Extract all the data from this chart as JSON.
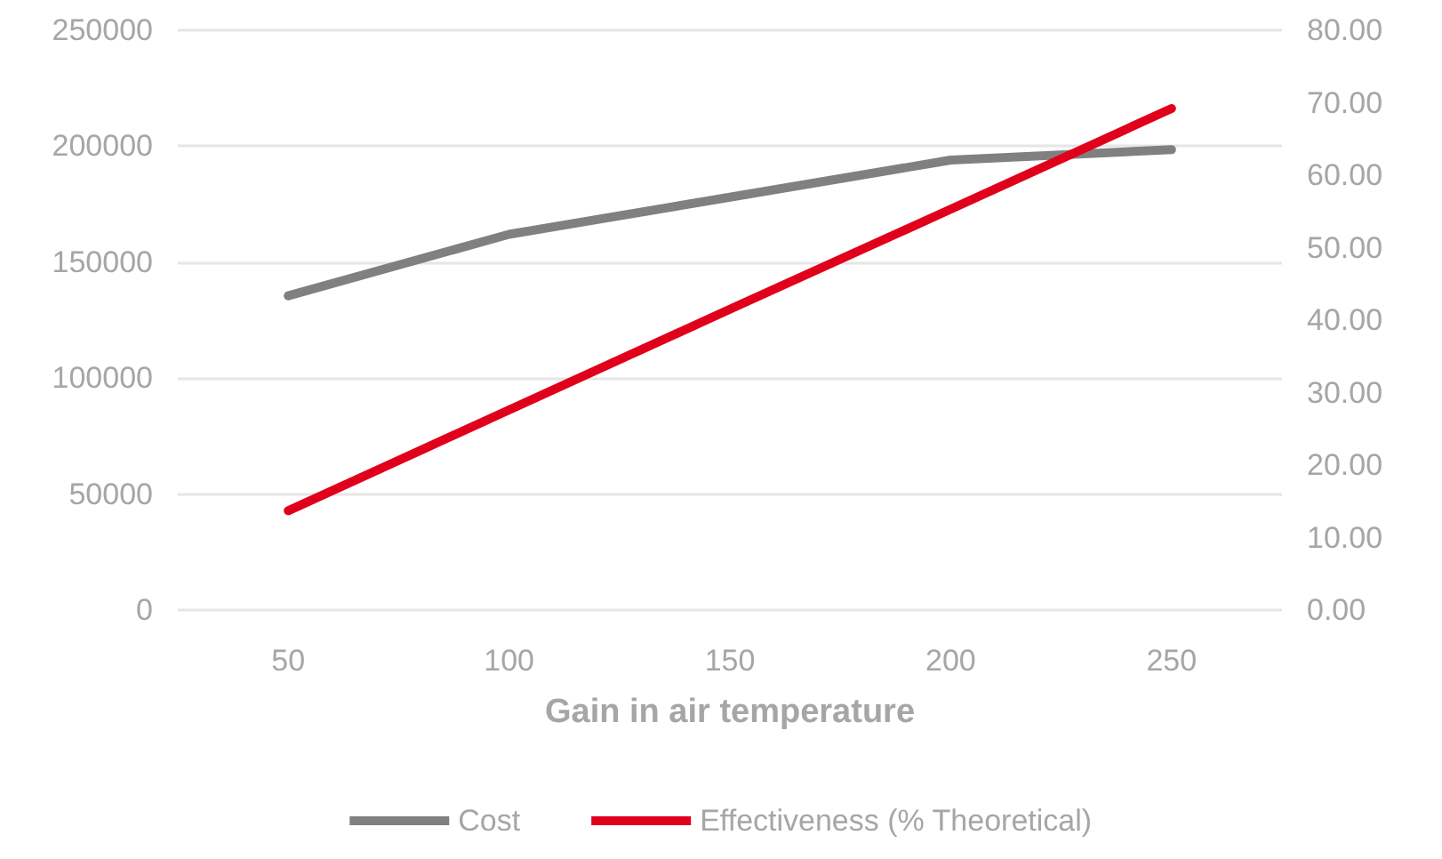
{
  "chart_data": {
    "type": "line",
    "xlabel": "Gain in air temperature",
    "categories": [
      "50",
      "100",
      "150",
      "200",
      "250"
    ],
    "series": [
      {
        "name": "Cost",
        "color": "#808080",
        "values": [
          135500,
          162000,
          178000,
          194000,
          198500
        ]
      },
      {
        "name": "Effectiveness (% Theoretical)",
        "color": "#e0001b",
        "axis": "y2",
        "values": [
          13.7,
          27.6,
          41.5,
          55.3,
          69.2
        ]
      }
    ],
    "ylim": [
      0,
      250000
    ],
    "yticks": [
      0,
      50000,
      100000,
      150000,
      200000,
      250000
    ],
    "y2lim": [
      0,
      80
    ],
    "y2ticks": [
      {
        "value": 0,
        "label": "0.00"
      },
      {
        "value": 10,
        "label": "10.00"
      },
      {
        "value": 20,
        "label": "20.00"
      },
      {
        "value": 30,
        "label": "30.00"
      },
      {
        "value": 40,
        "label": "40.00"
      },
      {
        "value": 50,
        "label": "50.00"
      },
      {
        "value": 60,
        "label": "60.00"
      },
      {
        "value": 70,
        "label": "70.00"
      },
      {
        "value": 80,
        "label": "80.00"
      }
    ],
    "grid": "y",
    "legend": "bottom",
    "marker": "none",
    "line_style": "solid"
  }
}
